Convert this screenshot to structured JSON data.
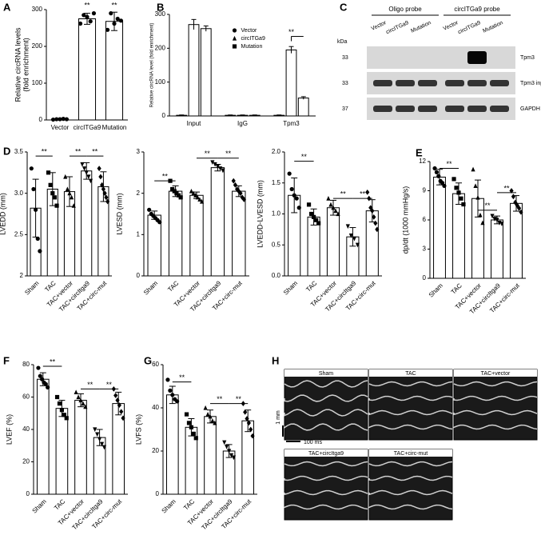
{
  "chart_data": [
    {
      "type": "bar",
      "panel": "A",
      "ylabel": [
        "Relative circRNA levels",
        "(fold enrichment)"
      ],
      "categories": [
        "Vector",
        "circITGa9",
        "Mutation"
      ],
      "values": [
        2,
        275,
        268
      ],
      "errors": [
        1,
        15,
        25
      ],
      "markers": [
        "circle",
        "circle",
        "circle"
      ],
      "points": [
        [
          1,
          2,
          2,
          3,
          2
        ],
        [
          262,
          285,
          280,
          268,
          290
        ],
        [
          245,
          290,
          262,
          275,
          270
        ]
      ],
      "ylim": [
        0,
        300
      ],
      "yticks": [
        0,
        100,
        200,
        300
      ],
      "sig": [
        {
          "between": [
            "circITGa9"
          ],
          "y": 300,
          "label": "**"
        },
        {
          "between": [
            "Mutation"
          ],
          "y": 300,
          "label": "**"
        }
      ]
    },
    {
      "type": "grouped_bar",
      "panel": "B",
      "ylabel": [
        "Relative circRNA level (fold enrichment)"
      ],
      "categories": [
        "Input",
        "IgG",
        "Tpm3"
      ],
      "series": [
        {
          "name": "Vector",
          "marker": "circle",
          "values": [
            2,
            2,
            2
          ],
          "errors": [
            1,
            1,
            1
          ]
        },
        {
          "name": "circITGa9",
          "marker": "triangle",
          "values": [
            270,
            2,
            195
          ],
          "errors": [
            15,
            1,
            10
          ]
        },
        {
          "name": "Mutation",
          "marker": "square",
          "values": [
            258,
            2,
            53
          ],
          "errors": [
            8,
            1,
            4
          ]
        }
      ],
      "ylim": [
        0,
        300
      ],
      "yticks": [
        0,
        100,
        200,
        300
      ],
      "legend": "upper center",
      "sig": [
        {
          "between": [
            "Tpm3"
          ],
          "y": 235,
          "label": "**"
        }
      ]
    },
    {
      "type": "blot",
      "panel": "C",
      "groups": [
        "Oligo probe",
        "circITGa9 probe"
      ],
      "lanes": [
        "Vector",
        "circITGa9",
        "Mutation",
        "Vector",
        "circITGa9",
        "Mutation"
      ],
      "unit": "kDa",
      "rows": [
        {
          "size": 33,
          "label": "Tpm3"
        },
        {
          "size": 33,
          "label": "Tpm3 input"
        },
        {
          "size": 37,
          "label": "GAPDH"
        }
      ]
    },
    {
      "type": "bar",
      "panel": "D",
      "ylabel": [
        "LVEDD (mm)"
      ],
      "categories": [
        "Sham",
        "TAC",
        "TAC+vector",
        "TAC+circItga9",
        "TAC+circ-mut"
      ],
      "values": [
        2.82,
        3.05,
        3.02,
        3.27,
        3.08
      ],
      "errors": [
        0.35,
        0.2,
        0.18,
        0.1,
        0.18
      ],
      "markers": [
        "circle",
        "square",
        "triangle",
        "triangle-down",
        "diamond"
      ],
      "points": [
        [
          3.3,
          3.05,
          2.8,
          2.45,
          2.3
        ],
        [
          3.25,
          3.1,
          3.0,
          2.95,
          2.85
        ],
        [
          3.2,
          3.05,
          3.0,
          2.95,
          2.85
        ],
        [
          3.35,
          3.3,
          3.25,
          3.2,
          3.15
        ],
        [
          3.3,
          3.2,
          3.1,
          3.05,
          3.0,
          2.95,
          2.9
        ]
      ],
      "ylim": [
        2,
        3.5
      ],
      "yticks": [
        2,
        2.5,
        {
          "value": 3,
          "label": "3.0"
        },
        3.5
      ],
      "sig": [
        {
          "between": [
            "Sham",
            "TAC"
          ],
          "y": 3.45,
          "label": "**"
        },
        {
          "between": [
            "TAC+vector",
            "TAC+circItga9"
          ],
          "y": 3.45,
          "label": "**"
        },
        {
          "between": [
            "TAC+circItga9",
            "TAC+circ-mut"
          ],
          "y": 3.45,
          "label": "**"
        }
      ]
    },
    {
      "type": "bar",
      "ylabel": [
        "LVESD (mm)"
      ],
      "categories": [
        "Sham",
        "TAC",
        "TAC+vector",
        "TAC+circItga9",
        "TAC+circ-mut"
      ],
      "values": [
        1.47,
        2.05,
        1.95,
        2.62,
        2.05
      ],
      "errors": [
        0.1,
        0.13,
        0.08,
        0.08,
        0.13
      ],
      "markers": [
        "circle",
        "square",
        "triangle",
        "triangle-down",
        "diamond"
      ],
      "points": [
        [
          1.6,
          1.5,
          1.45,
          1.4,
          1.35,
          1.3
        ],
        [
          2.3,
          2.1,
          2.05,
          2.0,
          1.95,
          1.9
        ],
        [
          2.05,
          2.0,
          1.95,
          1.9,
          1.85,
          1.8
        ],
        [
          2.75,
          2.7,
          2.65,
          2.6,
          2.55
        ],
        [
          2.3,
          2.2,
          2.1,
          2.05,
          2.0,
          1.9,
          1.85
        ]
      ],
      "ylim": [
        0,
        3
      ],
      "yticks": [
        0,
        1,
        2,
        3
      ],
      "sig": [
        {
          "between": [
            "Sham",
            "TAC"
          ],
          "y": 2.3,
          "label": "**"
        },
        {
          "between": [
            "TAC+vector",
            "TAC+circItga9"
          ],
          "y": 2.85,
          "label": "**"
        },
        {
          "between": [
            "TAC+circItga9",
            "TAC+circ-mut"
          ],
          "y": 2.85,
          "label": "**"
        }
      ]
    },
    {
      "type": "bar",
      "ylabel": [
        "LVEDD-LVESD (mm)"
      ],
      "categories": [
        "Sham",
        "TAC",
        "TAC+vector",
        "TAC+circItga9",
        "TAC+circ-mut"
      ],
      "values": [
        1.3,
        0.95,
        1.1,
        0.63,
        1.05
      ],
      "errors": [
        0.28,
        0.13,
        0.12,
        0.15,
        0.18
      ],
      "markers": [
        "circle",
        "square",
        "triangle",
        "triangle-down",
        "diamond"
      ],
      "points": [
        [
          1.65,
          1.4,
          1.3,
          1.25,
          1.1
        ],
        [
          1.15,
          1.0,
          0.95,
          0.9,
          0.85
        ],
        [
          1.25,
          1.15,
          1.1,
          1.05,
          1.0
        ],
        [
          0.8,
          0.65,
          0.6,
          0.5
        ],
        [
          1.35,
          1.25,
          1.1,
          1.05,
          0.95,
          0.85,
          0.75
        ]
      ],
      "ylim": [
        0,
        2
      ],
      "yticks": [
        {
          "value": 0,
          "label": "0.0"
        },
        0.5,
        {
          "value": 1,
          "label": "1.0"
        },
        1.5,
        {
          "value": 2,
          "label": "2.0"
        }
      ],
      "sig": [
        {
          "between": [
            "Sham",
            "TAC"
          ],
          "y": 1.85,
          "label": "**"
        },
        {
          "between": [
            "TAC+vector",
            "TAC+circItga9"
          ],
          "y": 1.25,
          "label": "**"
        },
        {
          "between": [
            "TAC+circItga9",
            "TAC+circ-mut"
          ],
          "y": 1.25,
          "label": "**"
        }
      ]
    },
    {
      "type": "bar",
      "panel": "E",
      "ylabel": [
        "dp/dt (1000 mmHg/s)"
      ],
      "categories": [
        "Sham",
        "TAC",
        "TAC+vector",
        "TAC+circItga9",
        "TAC+circ-mut"
      ],
      "values": [
        10.4,
        8.7,
        8.2,
        6.0,
        7.7
      ],
      "errors": [
        0.8,
        1.1,
        1.9,
        0.4,
        0.8
      ],
      "markers": [
        "circle",
        "square",
        "triangle",
        "triangle-down",
        "diamond"
      ],
      "points": [
        [
          11.3,
          10.9,
          10.5,
          10.0,
          9.8,
          9.5
        ],
        [
          10.2,
          9.3,
          8.8,
          8.2,
          7.6
        ],
        [
          11.2,
          9.5,
          8.3,
          6.5,
          5.7
        ],
        [
          6.4,
          6.1,
          6.0,
          5.7,
          5.6
        ],
        [
          9.0,
          8.4,
          7.8,
          7.5,
          7.2,
          6.8
        ]
      ],
      "ylim": [
        0,
        12
      ],
      "yticks": [
        0,
        3,
        6,
        9,
        12
      ],
      "sig": [
        {
          "between": [
            "Sham",
            "TAC"
          ],
          "y": 11.3,
          "label": "**"
        },
        {
          "between": [
            "TAC+vector",
            "TAC+circItga9"
          ],
          "y": 7.0,
          "label": "**"
        },
        {
          "between": [
            "TAC+circItga9",
            "TAC+circ-mut"
          ],
          "y": 8.8,
          "label": "**"
        }
      ]
    },
    {
      "type": "bar",
      "panel": "F",
      "ylabel": [
        "LVEF (%)"
      ],
      "categories": [
        "Sham",
        "TAC",
        "TAC+vector",
        "TAC+circItga9",
        "TAC+circ-mut"
      ],
      "values": [
        71,
        53,
        58,
        35,
        56
      ],
      "errors": [
        4,
        5,
        4,
        5,
        7
      ],
      "markers": [
        "circle",
        "square",
        "triangle",
        "triangle-down",
        "diamond"
      ],
      "points": [
        [
          78,
          73,
          71,
          69,
          68,
          66
        ],
        [
          60,
          56,
          52,
          49,
          47
        ],
        [
          63,
          60,
          58,
          56,
          54
        ],
        [
          40,
          37,
          34,
          31,
          29
        ],
        [
          65,
          61,
          58,
          55,
          51,
          47
        ]
      ],
      "ylim": [
        0,
        80
      ],
      "yticks": [
        0,
        20,
        40,
        60,
        80
      ],
      "sig": [
        {
          "between": [
            "Sham",
            "TAC"
          ],
          "y": 79,
          "label": "**"
        },
        {
          "between": [
            "TAC+vector",
            "TAC+circItga9"
          ],
          "y": 65,
          "label": "**"
        },
        {
          "between": [
            "TAC+circItga9",
            "TAC+circ-mut"
          ],
          "y": 65,
          "label": "**"
        }
      ]
    },
    {
      "type": "bar",
      "panel": "G",
      "ylabel": [
        "LVFS (%)"
      ],
      "categories": [
        "Sham",
        "TAC",
        "TAC+vector",
        "TAC+circItga9",
        "TAC+circ-mut"
      ],
      "values": [
        46,
        31,
        36,
        20,
        34
      ],
      "errors": [
        4,
        4,
        3,
        3,
        5
      ],
      "markers": [
        "circle",
        "square",
        "triangle",
        "triangle-down",
        "diamond"
      ],
      "points": [
        [
          53,
          48,
          46,
          44,
          43
        ],
        [
          37,
          33,
          31,
          28,
          26
        ],
        [
          40,
          37,
          36,
          34,
          33
        ],
        [
          24,
          22,
          20,
          18,
          17
        ],
        [
          42,
          38,
          35,
          33,
          30,
          27
        ]
      ],
      "ylim": [
        0,
        60
      ],
      "yticks": [
        0,
        20,
        40,
        60
      ],
      "sig": [
        {
          "between": [
            "Sham",
            "TAC"
          ],
          "y": 52,
          "label": "**"
        },
        {
          "between": [
            "TAC+vector",
            "TAC+circItga9"
          ],
          "y": 42,
          "label": "**"
        },
        {
          "between": [
            "TAC+circItga9",
            "TAC+circ-mut"
          ],
          "y": 42,
          "label": "**"
        }
      ]
    },
    {
      "type": "echo",
      "panel": "H",
      "images": [
        "Sham",
        "TAC",
        "TAC+vector",
        "TAC+circItga9",
        "TAC+circ-mut"
      ],
      "scale_y": "1 mm",
      "scale_x": "100 ms"
    }
  ]
}
